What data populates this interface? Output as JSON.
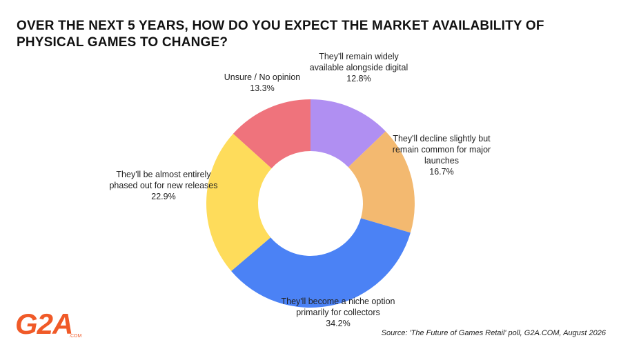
{
  "chart_data": {
    "type": "donut",
    "title": "OVER THE NEXT 5 YEARS, HOW DO YOU EXPECT THE MARKET AVAILABILITY OF PHYSICAL GAMES TO CHANGE?",
    "categories": [
      "They'll remain widely available alongside digital",
      "They'll decline slightly but remain common for major launches",
      "They'll become a niche option primarily for collectors",
      "They'll be almost entirely phased out for new releases",
      "Unsure / No opinion"
    ],
    "values": [
      12.8,
      16.7,
      34.2,
      22.9,
      13.3
    ],
    "value_labels": [
      "12.8%",
      "16.7%",
      "34.2%",
      "22.9%",
      "13.3%"
    ],
    "colors": [
      "#b08ff2",
      "#f3b970",
      "#4b82f5",
      "#fedc5b",
      "#ef737c"
    ],
    "source": "Source: 'The Future of Games Retail' poll, G2A.COM, August 2026"
  },
  "logo": {
    "name": "G2A",
    "sub": ".COM"
  }
}
